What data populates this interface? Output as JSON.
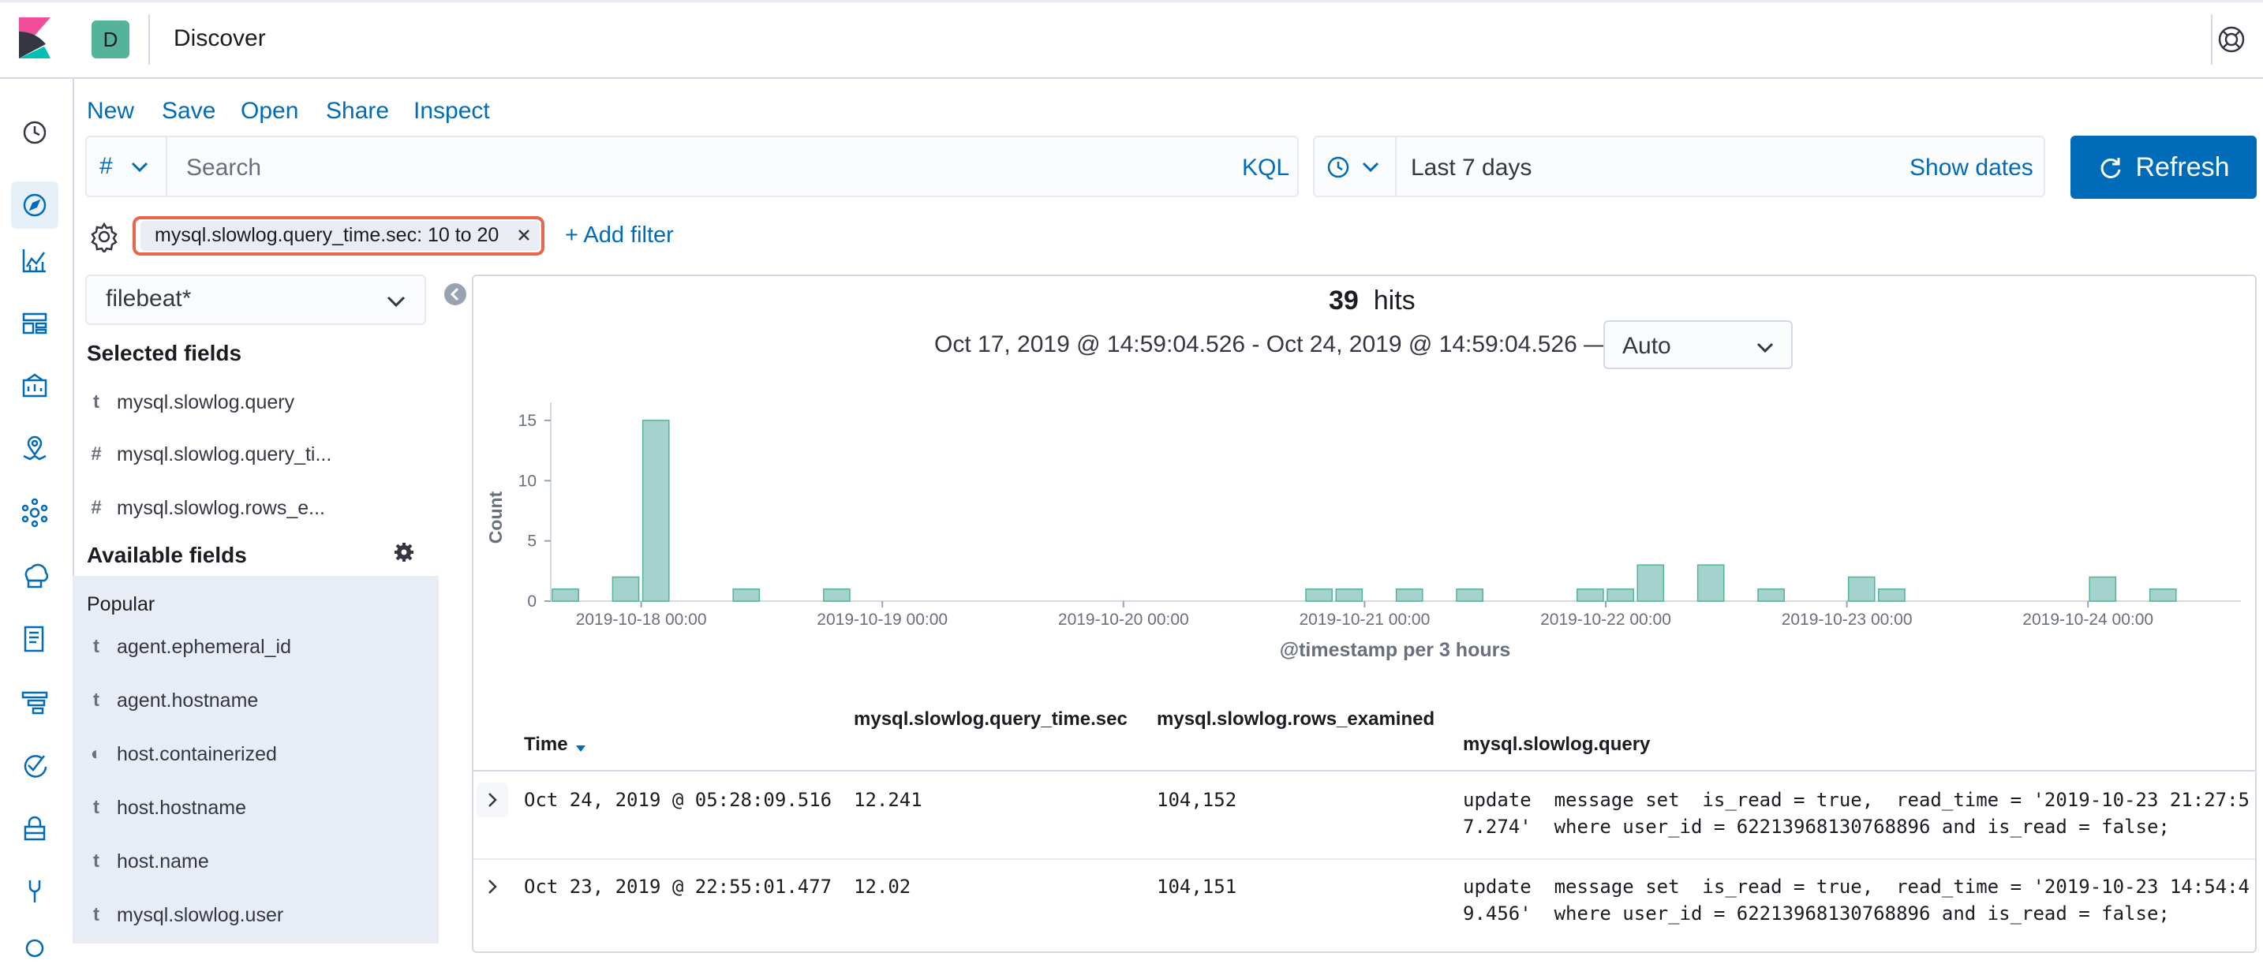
{
  "app": {
    "title": "Discover",
    "space_initial": "D"
  },
  "top_nav": [
    "New",
    "Save",
    "Open",
    "Share",
    "Inspect"
  ],
  "query_bar": {
    "language_symbol": "#",
    "search_placeholder": "Search",
    "query_language": "KQL"
  },
  "date_picker": {
    "range": "Last 7 days",
    "show_dates_label": "Show dates",
    "refresh_label": "Refresh"
  },
  "filters": {
    "active": [
      {
        "label": "mysql.slowlog.query_time.sec: 10 to 20"
      }
    ],
    "add_label": "+ Add filter"
  },
  "sidebar": {
    "index_pattern": "filebeat*",
    "selected_heading": "Selected fields",
    "selected_fields": [
      {
        "type": "t",
        "name": "mysql.slowlog.query"
      },
      {
        "type": "#",
        "name": "mysql.slowlog.query_ti..."
      },
      {
        "type": "#",
        "name": "mysql.slowlog.rows_e..."
      }
    ],
    "available_heading": "Available fields",
    "popular_label": "Popular",
    "popular_fields": [
      {
        "type": "t",
        "name": "agent.ephemeral_id"
      },
      {
        "type": "t",
        "name": "agent.hostname"
      },
      {
        "type": "◐",
        "name": "host.containerized"
      },
      {
        "type": "t",
        "name": "host.hostname"
      },
      {
        "type": "t",
        "name": "host.name"
      },
      {
        "type": "t",
        "name": "mysql.slowlog.user"
      }
    ]
  },
  "results": {
    "hits_count": "39",
    "hits_label": "hits",
    "time_range": "Oct 17, 2019 @ 14:59:04.526 - Oct 24, 2019 @ 14:59:04.526 —",
    "interval": "Auto"
  },
  "chart_data": {
    "type": "bar",
    "xlabel": "@timestamp per 3 hours",
    "ylabel": "Count",
    "yticks": [
      0,
      5,
      10,
      15
    ],
    "ylim": [
      0,
      16.5
    ],
    "xticks": [
      "2019-10-18 00:00",
      "2019-10-19 00:00",
      "2019-10-20 00:00",
      "2019-10-21 00:00",
      "2019-10-22 00:00",
      "2019-10-23 00:00",
      "2019-10-24 00:00"
    ],
    "bucket_hours": 3,
    "x_start": "2019-10-17 15:00",
    "x_end": "2019-10-24 18:00",
    "first_xtick": "2019-10-18 00:00",
    "bars": [
      {
        "x": "2019-10-17 15:00",
        "y": 1
      },
      {
        "x": "2019-10-17 21:00",
        "y": 2
      },
      {
        "x": "2019-10-18 00:00",
        "y": 15
      },
      {
        "x": "2019-10-18 09:00",
        "y": 1
      },
      {
        "x": "2019-10-18 18:00",
        "y": 1
      },
      {
        "x": "2019-10-20 18:00",
        "y": 1
      },
      {
        "x": "2019-10-20 21:00",
        "y": 1
      },
      {
        "x": "2019-10-21 03:00",
        "y": 1
      },
      {
        "x": "2019-10-21 09:00",
        "y": 1
      },
      {
        "x": "2019-10-21 21:00",
        "y": 1
      },
      {
        "x": "2019-10-22 00:00",
        "y": 1
      },
      {
        "x": "2019-10-22 03:00",
        "y": 3
      },
      {
        "x": "2019-10-22 09:00",
        "y": 3
      },
      {
        "x": "2019-10-22 15:00",
        "y": 1
      },
      {
        "x": "2019-10-23 00:00",
        "y": 2
      },
      {
        "x": "2019-10-23 03:00",
        "y": 1
      },
      {
        "x": "2019-10-24 00:00",
        "y": 2
      },
      {
        "x": "2019-10-24 06:00",
        "y": 1
      }
    ],
    "bar_color": "#a3d3cc",
    "bar_stroke": "#54b399",
    "now_line_color": "#e7664c"
  },
  "table": {
    "columns": {
      "time": "Time",
      "query_time": "mysql.slowlog.query_time.sec",
      "rows_examined": "mysql.slowlog.rows_examined",
      "query": "mysql.slowlog.query"
    },
    "rows": [
      {
        "time": "Oct 24, 2019 @ 05:28:09.516",
        "query_time": "12.241",
        "rows_examined": "104,152",
        "query_line1": "update  message set  is_read = true,  read_time = '2019-10-23 21:27:5",
        "query_line2": "7.274'  where user_id = 62213968130768896 and is_read = false;"
      },
      {
        "time": "Oct 23, 2019 @ 22:55:01.477",
        "query_time": "12.02",
        "rows_examined": "104,151",
        "query_line1": "update  message set  is_read = true,  read_time = '2019-10-23 14:54:4",
        "query_line2": "9.456'  where user_id = 62213968130768896 and is_read = false;"
      }
    ]
  }
}
